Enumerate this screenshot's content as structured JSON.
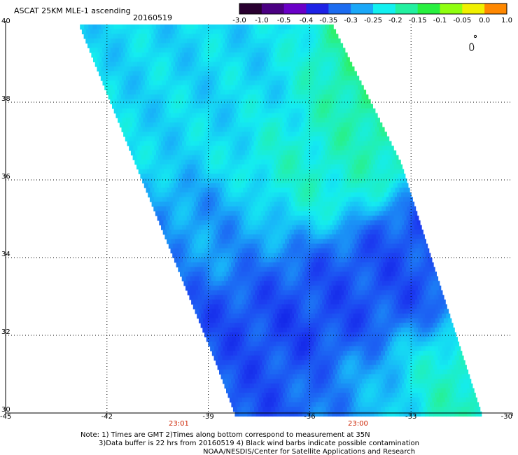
{
  "header": {
    "title": "ASCAT 25KM MLE-1 ascending",
    "date": "20160519"
  },
  "colorbar": {
    "labels": [
      "-3.0",
      "-1.0",
      "-0.5",
      "-0.4",
      "-0.35",
      "-0.3",
      "-0.25",
      "-0.2",
      "-0.15",
      "-0.1",
      "-0.05",
      "0.0",
      "1.0"
    ],
    "colors": [
      "#2a0030",
      "#4b0082",
      "#6a00c8",
      "#1e22e6",
      "#1c6cf0",
      "#1aa8f8",
      "#12f0f0",
      "#22f0a0",
      "#28f040",
      "#90ff10",
      "#f0f000",
      "#ff8800",
      "#ff2000"
    ]
  },
  "time_labels": [
    "23:01",
    "23:00"
  ],
  "notes": [
    "Note: 1) Times are GMT 2)Times along bottom correspond to measurement at 35N",
    "3)Data buffer is 22 hrs from 20160519 4) Black wind barbs indicate possible contamination",
    "NOAA/NESDIS/Center for Satellite Applications and Research"
  ],
  "chart_data": {
    "type": "heatmap",
    "title": "ASCAT 25KM MLE-1 ascending",
    "subtitle": "20160519",
    "xlim": [
      -45,
      -30
    ],
    "ylim": [
      30,
      40
    ],
    "x_ticks": [
      "-45",
      "-42",
      "-39",
      "-36",
      "-33",
      "-30"
    ],
    "x_tick_values": [
      -45,
      -42,
      -39,
      -36,
      -33,
      -30
    ],
    "y_ticks": [
      "40",
      "38",
      "36",
      "34",
      "32",
      "30"
    ],
    "y_tick_values": [
      40,
      38,
      36,
      34,
      32,
      30
    ],
    "grid": true,
    "legend": "top-right colorbar",
    "swath": {
      "west_edge": [
        [
          -42.8,
          40
        ],
        [
          -38.8,
          31.4
        ],
        [
          -38.2,
          30
        ]
      ],
      "east_edge": [
        [
          -35.3,
          40
        ],
        [
          -33.3,
          36.5
        ],
        [
          -32.2,
          33.5
        ],
        [
          -30.9,
          30
        ]
      ]
    },
    "regions": [
      {
        "value": -0.27,
        "lon": [
          -42.5,
          -35.8
        ],
        "lat": [
          36.8,
          40
        ]
      },
      {
        "value": -0.17,
        "lon": [
          -35.6,
          -33.2
        ],
        "lat": [
          37.5,
          40
        ]
      },
      {
        "value": -0.22,
        "lon": [
          -37.5,
          -35.0
        ],
        "lat": [
          35.0,
          37.5
        ]
      },
      {
        "value": -0.32,
        "lon": [
          -40.5,
          -37.0
        ],
        "lat": [
          33.8,
          35.5
        ]
      },
      {
        "value": -0.38,
        "lon": [
          -37.0,
          -32.2
        ],
        "lat": [
          32.0,
          34.3
        ]
      },
      {
        "value": -0.38,
        "lon": [
          -39.5,
          -34.0
        ],
        "lat": [
          30.0,
          33.0
        ]
      },
      {
        "value": -0.4,
        "lon": [
          -37.2,
          -35.2
        ],
        "lat": [
          31.8,
          32.5
        ]
      },
      {
        "value": -0.2,
        "lon": [
          -33.6,
          -31.0
        ],
        "lat": [
          30.0,
          31.8
        ]
      },
      {
        "value": -0.3,
        "lon": [
          -35.5,
          -33.0
        ],
        "lat": [
          30.0,
          31.5
        ]
      }
    ]
  }
}
